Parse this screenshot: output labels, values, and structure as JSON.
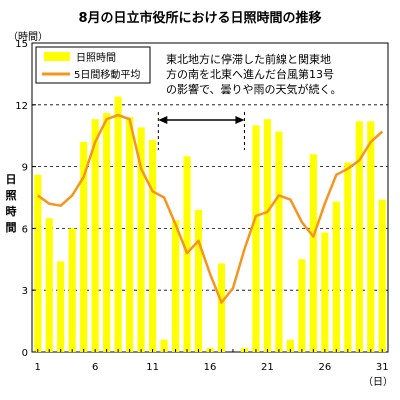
{
  "chart_data": {
    "type": "bar+line",
    "title": "8月の日立市役所における日照時間の推移",
    "y_unit_label": "（時間）",
    "x_unit_label": "（日）",
    "ylabel": "日照時間",
    "ylim": [
      0,
      15
    ],
    "yticks": [
      0,
      3,
      6,
      9,
      12,
      15
    ],
    "xlim": [
      1,
      31
    ],
    "xticks": [
      1,
      6,
      11,
      16,
      21,
      26,
      31
    ],
    "grid": "horizontal dashed at 3, 6, 9, 12",
    "legend_position": "top-left",
    "categories": [
      1,
      2,
      3,
      4,
      5,
      6,
      7,
      8,
      9,
      10,
      11,
      12,
      13,
      14,
      15,
      16,
      17,
      18,
      19,
      20,
      21,
      22,
      23,
      24,
      25,
      26,
      27,
      28,
      29,
      30,
      31
    ],
    "series": [
      {
        "name": "日照時間",
        "type": "bar",
        "color": "#ffff00",
        "values": [
          8.6,
          6.5,
          4.4,
          6.0,
          10.2,
          11.3,
          11.6,
          12.4,
          11.4,
          10.9,
          10.3,
          0.6,
          6.4,
          9.5,
          6.9,
          0.2,
          4.3,
          0.0,
          0.2,
          11.0,
          11.3,
          10.7,
          0.6,
          4.5,
          9.6,
          5.8,
          7.3,
          9.2,
          11.2,
          11.2,
          7.4
        ]
      },
      {
        "name": "5日間移動平均",
        "type": "line",
        "color": "#f7941d",
        "values": [
          7.6,
          7.2,
          7.1,
          7.6,
          8.5,
          10.2,
          11.3,
          11.5,
          11.3,
          8.9,
          7.8,
          7.5,
          6.2,
          4.8,
          5.4,
          3.8,
          2.4,
          3.1,
          5.0,
          6.6,
          6.8,
          7.6,
          7.4,
          6.3,
          5.6,
          7.2,
          8.6,
          8.9,
          9.3,
          10.2,
          10.7
        ]
      }
    ],
    "annotation": {
      "lines": [
        "東北地方に停滞した前線と関東地",
        "方の南を北東へ進んだ台風第13号",
        "の影響で、曇りや雨の天気が続く。"
      ],
      "range_start_day": 11.5,
      "range_end_day": 19
    }
  }
}
